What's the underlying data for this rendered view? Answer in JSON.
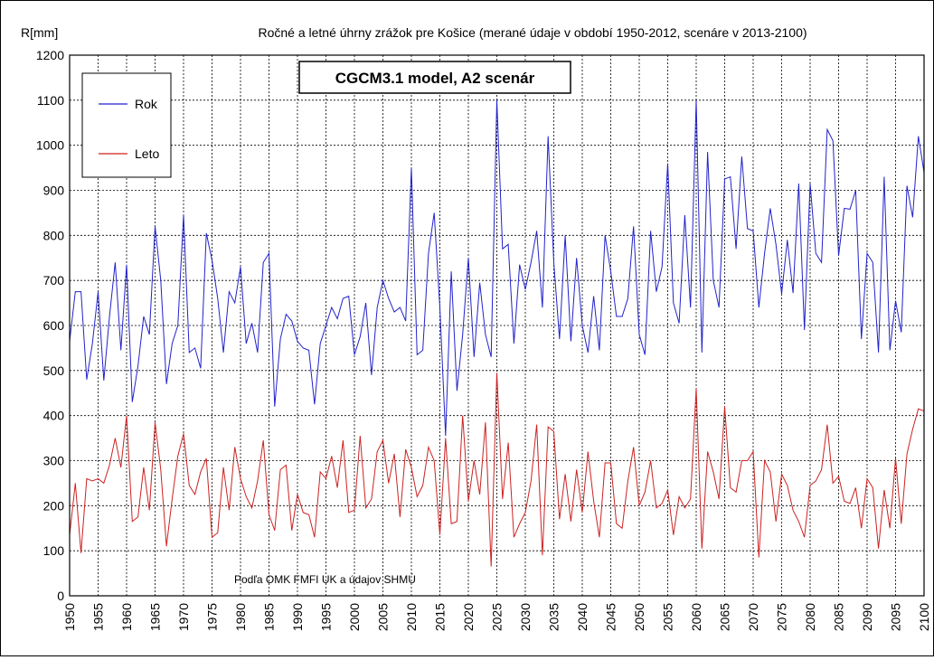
{
  "chart_data": {
    "type": "line",
    "title": "Ročné a letné úhrny zrážok pre Košice (merané údaje v období 1950-2012, scenáre v 2013-2100)",
    "model_box": "CGCM3.1 model, A2 scenár",
    "ylabel": "R[mm]",
    "xlabel": "",
    "source_note": "Podľa OMK FMFI UK a údajov SHMÚ",
    "xlim": [
      1950,
      2100
    ],
    "ylim": [
      0,
      1200
    ],
    "x_ticks": [
      1950,
      1955,
      1960,
      1965,
      1970,
      1975,
      1980,
      1985,
      1990,
      1995,
      2000,
      2005,
      2010,
      2015,
      2020,
      2025,
      2030,
      2035,
      2040,
      2045,
      2050,
      2055,
      2060,
      2065,
      2070,
      2075,
      2080,
      2085,
      2090,
      2095,
      2100
    ],
    "y_ticks": [
      0,
      100,
      200,
      300,
      400,
      500,
      600,
      700,
      800,
      900,
      1000,
      1100,
      1200
    ],
    "grid": true,
    "legend_position": "top-left",
    "x_start": 1950,
    "series": [
      {
        "name": "Rok",
        "color": "#2222cc",
        "values": [
          565,
          675,
          675,
          480,
          560,
          675,
          478,
          620,
          740,
          545,
          735,
          430,
          510,
          620,
          580,
          820,
          700,
          470,
          560,
          600,
          845,
          540,
          550,
          505,
          805,
          745,
          660,
          540,
          675,
          650,
          730,
          560,
          605,
          540,
          740,
          760,
          420,
          570,
          625,
          610,
          565,
          550,
          545,
          425,
          560,
          600,
          640,
          615,
          660,
          665,
          535,
          575,
          650,
          490,
          640,
          700,
          660,
          630,
          640,
          610,
          950,
          535,
          545,
          760,
          850,
          640,
          355,
          720,
          455,
          580,
          750,
          530,
          695,
          580,
          530,
          1100,
          770,
          780,
          560,
          735,
          680,
          740,
          810,
          640,
          1020,
          740,
          570,
          800,
          565,
          750,
          600,
          540,
          665,
          545,
          800,
          720,
          620,
          620,
          660,
          820,
          580,
          535,
          810,
          675,
          730,
          960,
          650,
          605,
          845,
          640,
          1100,
          540,
          985,
          700,
          640,
          925,
          930,
          770,
          975,
          815,
          810,
          640,
          760,
          860,
          780,
          670,
          790,
          672,
          915,
          590,
          915,
          760,
          740,
          1035,
          1010,
          755,
          860,
          858,
          900,
          570,
          760,
          740,
          540,
          930,
          545,
          655,
          585,
          910,
          840,
          1020,
          940
        ]
      },
      {
        "name": "Leto",
        "color": "#cc2222",
        "values": [
          135,
          250,
          95,
          260,
          255,
          260,
          250,
          290,
          350,
          285,
          400,
          165,
          175,
          285,
          190,
          385,
          280,
          110,
          215,
          310,
          360,
          245,
          225,
          275,
          305,
          130,
          140,
          285,
          190,
          330,
          260,
          220,
          195,
          255,
          345,
          180,
          145,
          280,
          290,
          145,
          225,
          185,
          180,
          130,
          275,
          260,
          310,
          240,
          345,
          185,
          190,
          355,
          195,
          215,
          320,
          345,
          250,
          315,
          175,
          325,
          285,
          220,
          245,
          330,
          300,
          135,
          350,
          160,
          165,
          400,
          210,
          300,
          225,
          385,
          65,
          495,
          215,
          340,
          130,
          160,
          185,
          255,
          380,
          90,
          375,
          365,
          170,
          270,
          165,
          280,
          185,
          320,
          210,
          130,
          295,
          295,
          160,
          150,
          255,
          330,
          200,
          230,
          300,
          195,
          205,
          235,
          135,
          220,
          195,
          215,
          460,
          105,
          320,
          275,
          215,
          420,
          240,
          230,
          300,
          300,
          320,
          85,
          300,
          275,
          165,
          270,
          245,
          190,
          165,
          130,
          245,
          255,
          280,
          380,
          250,
          265,
          210,
          205,
          240,
          150,
          260,
          240,
          105,
          235,
          150,
          305,
          160,
          315,
          370,
          415,
          410
        ]
      }
    ]
  }
}
